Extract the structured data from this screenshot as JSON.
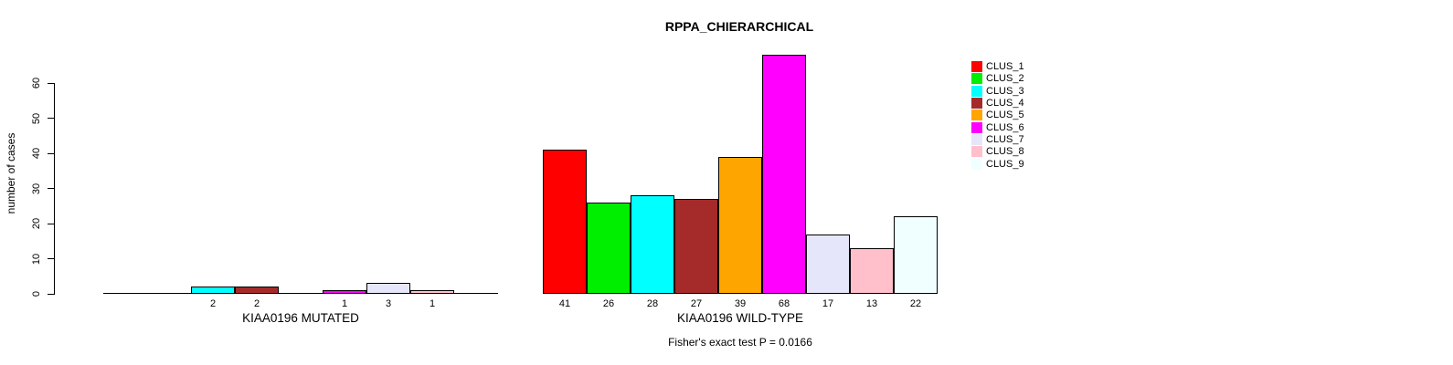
{
  "chart_data": {
    "type": "bar",
    "title": "RPPA_CHIERARCHICAL",
    "ylabel": "number of cases",
    "footnote": "Fisher's exact test P = 0.0166",
    "yticks": [
      0,
      10,
      20,
      30,
      40,
      50,
      60
    ],
    "ylim": [
      0,
      68
    ],
    "grid": false,
    "legend_position": "right",
    "clusters": [
      {
        "label": "CLUS_1",
        "color": "#FF0000"
      },
      {
        "label": "CLUS_2",
        "color": "#00EE00"
      },
      {
        "label": "CLUS_3",
        "color": "#00FFFF"
      },
      {
        "label": "CLUS_4",
        "color": "#A52A2A"
      },
      {
        "label": "CLUS_5",
        "color": "#FFA500"
      },
      {
        "label": "CLUS_6",
        "color": "#FF00FF"
      },
      {
        "label": "CLUS_7",
        "color": "#E6E6FA"
      },
      {
        "label": "CLUS_8",
        "color": "#FFC0CB"
      },
      {
        "label": "CLUS_9",
        "color": "#F0FFFF"
      }
    ],
    "groups": [
      {
        "label": "KIAA0196 MUTATED",
        "values": [
          0,
          0,
          2,
          2,
          0,
          1,
          3,
          1,
          0
        ]
      },
      {
        "label": "KIAA0196 WILD-TYPE",
        "values": [
          41,
          26,
          28,
          27,
          39,
          68,
          17,
          13,
          22
        ]
      }
    ]
  }
}
